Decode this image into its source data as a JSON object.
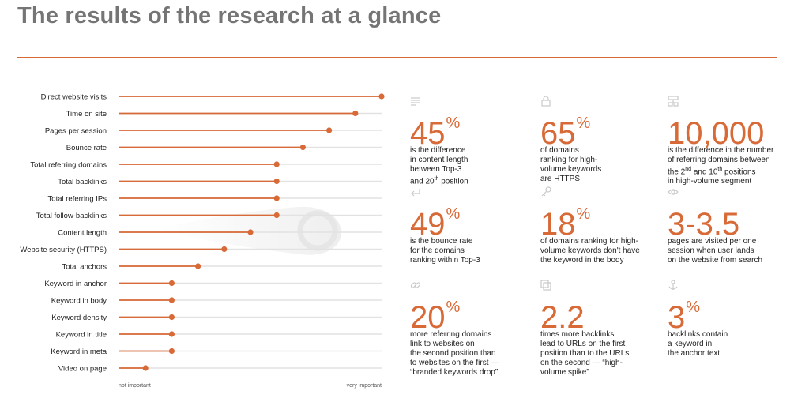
{
  "title": "The results of the research at a glance",
  "colors": {
    "accent": "#d86a38",
    "rule": "#d86a38",
    "track": "#e2e2e2",
    "title": "#757575"
  },
  "chart_data": {
    "type": "dot-bar",
    "scale_labels": {
      "low": "not important",
      "high": "very important"
    },
    "categories": [
      "Direct website visits",
      "Time on site",
      "Pages per session",
      "Bounce rate",
      "Total referring domains",
      "Total backlinks",
      "Total referring IPs",
      "Total follow-backlinks",
      "Content length",
      "Website security (HTTPS)",
      "Total anchors",
      "Keyword in anchor",
      "Keyword in body",
      "Keyword density",
      "Keyword in title",
      "Keyword in meta",
      "Video on page"
    ],
    "values": [
      1.0,
      0.9,
      0.8,
      0.7,
      0.6,
      0.6,
      0.6,
      0.6,
      0.5,
      0.4,
      0.3,
      0.2,
      0.2,
      0.2,
      0.2,
      0.2,
      0.1
    ],
    "xlim": [
      0,
      1
    ],
    "grid": false
  },
  "stats": [
    {
      "icon": "document-lines-icon",
      "value": "45",
      "suffix": "%",
      "lines": [
        "is the difference",
        "in content length",
        "between Top-3",
        "and 20<sup>th</sup> position"
      ]
    },
    {
      "icon": "lock-icon",
      "value": "65",
      "suffix": "%",
      "lines": [
        "of domains",
        "ranking for high-",
        "volume keywords",
        "are HTTPS"
      ]
    },
    {
      "icon": "sitemap-icon",
      "value": "10,000",
      "suffix": "",
      "lines": [
        "is the difference in the number",
        "of referring domains between",
        "the 2<sup>nd</sup> and 10<sup>th</sup> positions",
        "in high-volume segment"
      ]
    },
    {
      "icon": "return-arrow-icon",
      "value": "49",
      "suffix": "%",
      "lines": [
        "is the bounce rate",
        "for the domains",
        "ranking within Top-3"
      ]
    },
    {
      "icon": "key-icon",
      "value": "18",
      "suffix": "%",
      "lines": [
        "of domains ranking for high-",
        "volume keywords don't have",
        "the keyword in the body"
      ]
    },
    {
      "icon": "eye-icon",
      "value": "3-3.5",
      "suffix": "",
      "lines": [
        "pages are visited per one",
        "session when user lands",
        "on the website from search"
      ]
    },
    {
      "icon": "link-icon",
      "value": "20",
      "suffix": "%",
      "lines": [
        "more referring domains",
        "link to websites on",
        "the second position than",
        "to websites on the first —",
        "“branded keywords drop”"
      ]
    },
    {
      "icon": "pages-icon",
      "value": "2.2",
      "suffix": "",
      "lines": [
        "times more backlinks",
        "lead to URLs on the first",
        "position than to the URLs",
        "on the second — “high-",
        "volume spike”"
      ]
    },
    {
      "icon": "anchor-icon",
      "value": "3",
      "suffix": "%",
      "lines": [
        "backlinks contain",
        "a keyword in",
        "the anchor text"
      ]
    }
  ]
}
